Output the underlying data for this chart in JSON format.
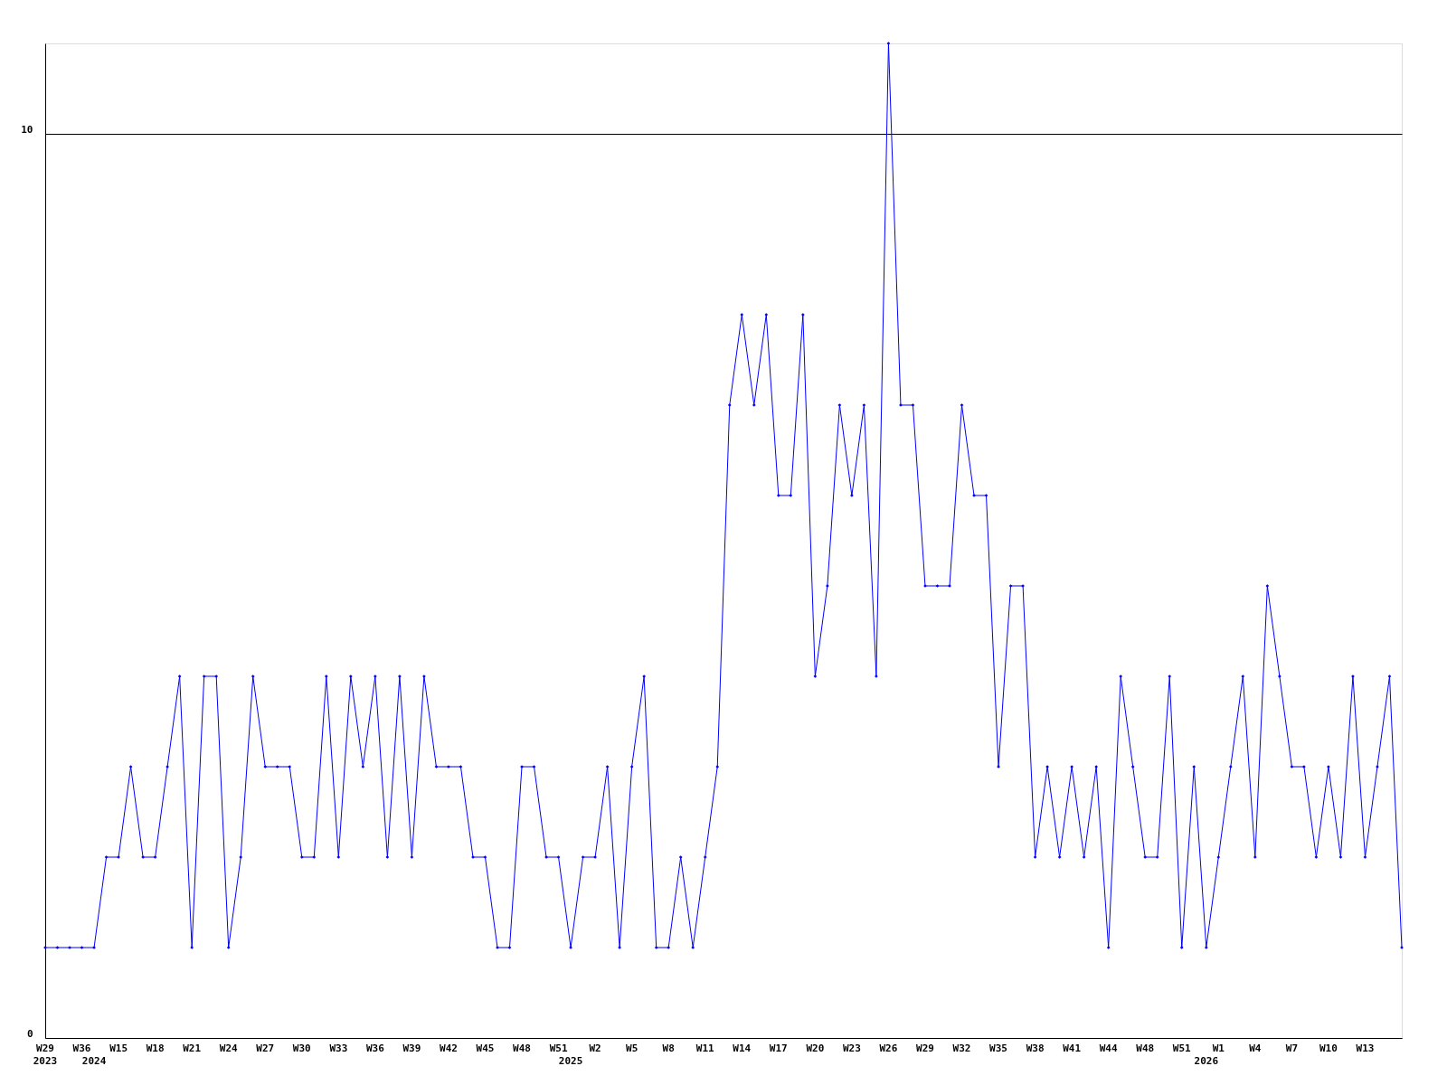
{
  "chart_data": {
    "type": "line",
    "categories": [
      "W29\n2023",
      null,
      null,
      "W36",
      "\n2024",
      null,
      "W15",
      null,
      null,
      "W18",
      null,
      null,
      "W21",
      null,
      null,
      "W24",
      null,
      null,
      "W27",
      null,
      null,
      "W30",
      null,
      null,
      "W33",
      null,
      null,
      "W36",
      null,
      null,
      "W39",
      null,
      null,
      "W42",
      null,
      null,
      "W45",
      null,
      null,
      "W48",
      null,
      null,
      "W51",
      "\n2025",
      null,
      "W2",
      null,
      null,
      "W5",
      null,
      null,
      "W8",
      null,
      null,
      "W11",
      null,
      null,
      "W14",
      null,
      null,
      "W17",
      null,
      null,
      "W20",
      null,
      null,
      "W23",
      null,
      null,
      "W26",
      null,
      null,
      "W29",
      null,
      null,
      "W32",
      null,
      null,
      "W35",
      null,
      null,
      "W38",
      null,
      null,
      "W41",
      null,
      null,
      "W44",
      null,
      null,
      "W48",
      null,
      null,
      "W51",
      null,
      "\n2026",
      "W1",
      null,
      null,
      "W4",
      null,
      null,
      "W7",
      null,
      null,
      "W10",
      null,
      null,
      "W13",
      null,
      null,
      null
    ],
    "series": [
      {
        "color": "#0000ff",
        "values": [
          1,
          1,
          1,
          1,
          1,
          2,
          2,
          3,
          2,
          2,
          3,
          4,
          1,
          4,
          4,
          1,
          2,
          4,
          3,
          3,
          3,
          2,
          2,
          4,
          2,
          4,
          3,
          4,
          2,
          4,
          2,
          4,
          3,
          3,
          3,
          2,
          2,
          1,
          1,
          3,
          3,
          2,
          2,
          1,
          2,
          2,
          3,
          1,
          3,
          4,
          1,
          1,
          2,
          1,
          2,
          3,
          7,
          8,
          7,
          8,
          6,
          6,
          8,
          4,
          5,
          7,
          6,
          7,
          4,
          11,
          7,
          7,
          5,
          5,
          5,
          7,
          6,
          6,
          3,
          5,
          5,
          2,
          3,
          2,
          3,
          2,
          3,
          1,
          4,
          3,
          2,
          2,
          4,
          1,
          3,
          1,
          2,
          3,
          4,
          2,
          5,
          4,
          3,
          3,
          2,
          3,
          2,
          4,
          2,
          3,
          4,
          1
        ]
      }
    ],
    "ylim": [
      0,
      11
    ],
    "yticks": [
      0,
      10
    ],
    "grid": "y",
    "marker": "diamond",
    "line_style": "solid"
  }
}
